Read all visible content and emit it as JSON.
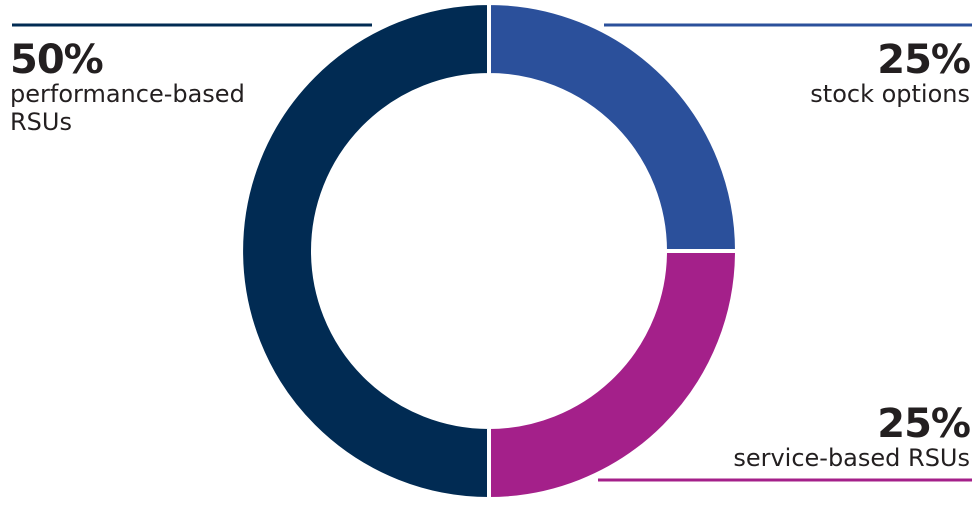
{
  "chart_data": {
    "type": "pie",
    "title": "",
    "slices": [
      {
        "label": "stock options",
        "value": 25,
        "value_label": "25%",
        "color": "#2b509b"
      },
      {
        "label": "service-based RSUs",
        "value": 25,
        "value_label": "25%",
        "color": "#a4208a"
      },
      {
        "label": "performance-based RSUs",
        "value": 50,
        "value_label": "50%",
        "color": "#012b53"
      }
    ],
    "style": "donut",
    "start": "top",
    "direction": "clockwise",
    "legend": "none",
    "separator_color": "#ffffff"
  },
  "callouts": {
    "performance": {
      "pct": "50%",
      "label": "performance-based RSUs"
    },
    "stock": {
      "pct": "25%",
      "label": "stock options"
    },
    "service": {
      "pct": "25%",
      "label": "service-based RSUs"
    }
  }
}
